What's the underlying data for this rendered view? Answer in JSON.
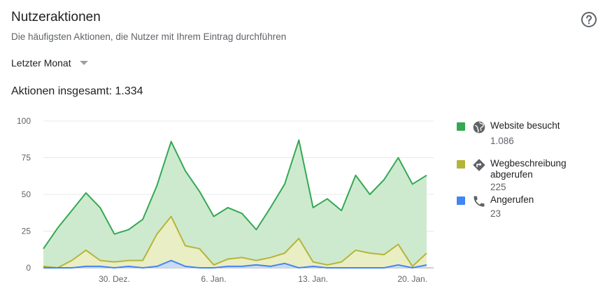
{
  "header": {
    "title": "Nutzeraktionen",
    "subtitle": "Die häufigsten Aktionen, die Nutzer mit Ihrem Eintrag durchführen",
    "period": "Letzter Monat",
    "total_text": "Aktionen insgesamt: 1.334"
  },
  "legend": [
    {
      "label": "Website besucht",
      "value": "1.086",
      "color": "#34a853",
      "icon": "globe-icon"
    },
    {
      "label": "Wegbeschreibung abgerufen",
      "value": "225",
      "color": "#b5b43a",
      "icon": "directions-icon"
    },
    {
      "label": "Angerufen",
      "value": "23",
      "color": "#4285f4",
      "icon": "phone-icon"
    }
  ],
  "chart_data": {
    "type": "area",
    "ylim": [
      0,
      100
    ],
    "y_ticks": [
      "0",
      "25",
      "50",
      "75",
      "100"
    ],
    "x_tick_labels": [
      {
        "label": "30. Dez.",
        "index": 5
      },
      {
        "label": "6. Jan.",
        "index": 12
      },
      {
        "label": "13. Jan.",
        "index": 19
      },
      {
        "label": "20. Jan.",
        "index": 26
      }
    ],
    "series": [
      {
        "name": "Website besucht",
        "color": "#34a853",
        "fill": "#cdeacf",
        "values": [
          13,
          27,
          39,
          51,
          41,
          23,
          26,
          33,
          56,
          86,
          66,
          52,
          35,
          41,
          37,
          26,
          41,
          57,
          87,
          41,
          47,
          39,
          63,
          50,
          60,
          75,
          57,
          63
        ]
      },
      {
        "name": "Wegbeschreibung abgerufen",
        "color": "#b5b43a",
        "fill": "#eaeec4",
        "values": [
          1,
          0,
          5,
          12,
          5,
          4,
          5,
          5,
          23,
          35,
          15,
          13,
          2,
          6,
          7,
          5,
          7,
          10,
          20,
          4,
          2,
          4,
          12,
          10,
          9,
          16,
          1,
          10
        ]
      },
      {
        "name": "Angerufen",
        "color": "#4285f4",
        "fill": "#c7dcf5",
        "values": [
          0,
          0,
          0,
          1,
          1,
          0,
          1,
          0,
          1,
          5,
          1,
          0,
          0,
          1,
          1,
          2,
          1,
          3,
          0,
          1,
          0,
          0,
          0,
          0,
          0,
          2,
          0,
          2
        ]
      }
    ]
  }
}
